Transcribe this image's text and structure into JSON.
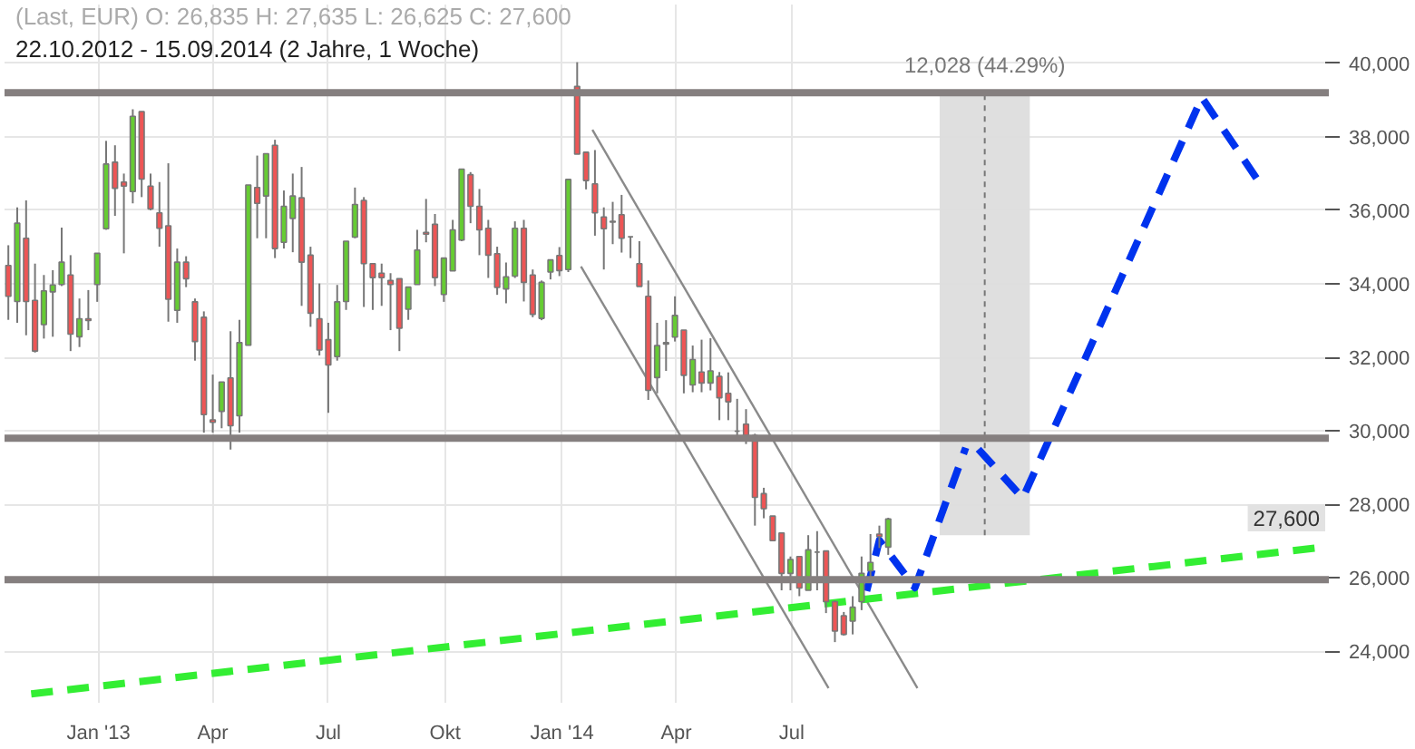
{
  "chart_data": {
    "type": "candlestick",
    "title": "(Last, EUR)  O: 26,835  H: 27,635  L: 26,625  C: 27,600",
    "subtitle": "22.10.2012 - 15.09.2014 (2 Jahre, 1 Woche)",
    "x": [
      "2012-10-22",
      "2012-10-29",
      "2012-11-05",
      "2012-11-12",
      "2012-11-19",
      "2012-11-26",
      "2012-12-03",
      "2012-12-10",
      "2012-12-17",
      "2012-12-24",
      "2012-12-31",
      "2013-01-07",
      "2013-01-14",
      "2013-01-21",
      "2013-01-28",
      "2013-02-04",
      "2013-02-11",
      "2013-02-18",
      "2013-02-25",
      "2013-03-04",
      "2013-03-11",
      "2013-03-18",
      "2013-03-25",
      "2013-04-01",
      "2013-04-08",
      "2013-04-15",
      "2013-04-22",
      "2013-04-29",
      "2013-05-06",
      "2013-05-13",
      "2013-05-20",
      "2013-05-27",
      "2013-06-03",
      "2013-06-10",
      "2013-06-17",
      "2013-06-24",
      "2013-07-01",
      "2013-07-08",
      "2013-07-15",
      "2013-07-22",
      "2013-07-29",
      "2013-08-05",
      "2013-08-12",
      "2013-08-19",
      "2013-08-26",
      "2013-09-02",
      "2013-09-09",
      "2013-09-16",
      "2013-09-23",
      "2013-09-30",
      "2013-10-07",
      "2013-10-14",
      "2013-10-21",
      "2013-10-28",
      "2013-11-04",
      "2013-11-11",
      "2013-11-18",
      "2013-11-25",
      "2013-12-02",
      "2013-12-09",
      "2013-12-16",
      "2013-12-23",
      "2013-12-30",
      "2014-01-06",
      "2014-01-13",
      "2014-01-20",
      "2014-01-27",
      "2014-02-03",
      "2014-02-10",
      "2014-02-17",
      "2014-02-24",
      "2014-03-03",
      "2014-03-10",
      "2014-03-17",
      "2014-03-24",
      "2014-03-31",
      "2014-04-07",
      "2014-04-14",
      "2014-04-21",
      "2014-04-28",
      "2014-05-05",
      "2014-05-12",
      "2014-05-19",
      "2014-05-26",
      "2014-06-02",
      "2014-06-09",
      "2014-06-16",
      "2014-06-23",
      "2014-06-30",
      "2014-07-07",
      "2014-07-14",
      "2014-07-21",
      "2014-07-28",
      "2014-08-04",
      "2014-08-11",
      "2014-08-18",
      "2014-08-25",
      "2014-09-01",
      "2014-09-08",
      "2014-09-15"
    ],
    "ohlc": [
      [
        34500,
        35050,
        33020,
        33660
      ],
      [
        33520,
        36080,
        32940,
        35650
      ],
      [
        35240,
        36270,
        32600,
        33520
      ],
      [
        33550,
        34550,
        32130,
        32170
      ],
      [
        32890,
        34240,
        32510,
        33810
      ],
      [
        33780,
        34370,
        32560,
        33970
      ],
      [
        33980,
        35530,
        33940,
        34590
      ],
      [
        34240,
        34780,
        32170,
        32630
      ],
      [
        32560,
        33600,
        32280,
        33050
      ],
      [
        33050,
        33830,
        32740,
        33000
      ],
      [
        33980,
        34830,
        33510,
        34830
      ],
      [
        35500,
        37890,
        35470,
        37260
      ],
      [
        37310,
        37770,
        35850,
        36600
      ],
      [
        36770,
        37000,
        34830,
        36660
      ],
      [
        36510,
        38750,
        36190,
        38560
      ],
      [
        38690,
        38690,
        36360,
        36850
      ],
      [
        36660,
        37000,
        36000,
        36040
      ],
      [
        35930,
        36770,
        35010,
        35510
      ],
      [
        35580,
        37280,
        32970,
        33580
      ],
      [
        33280,
        34960,
        32940,
        34590
      ],
      [
        34590,
        34750,
        33910,
        34140
      ],
      [
        33510,
        33600,
        31910,
        32430
      ],
      [
        33090,
        33250,
        29950,
        30440
      ],
      [
        30300,
        31530,
        29950,
        30230
      ],
      [
        30530,
        31330,
        30070,
        31330
      ],
      [
        31440,
        32710,
        29490,
        30140
      ],
      [
        30410,
        33020,
        29950,
        32400
      ],
      [
        32330,
        36690,
        32330,
        36690
      ],
      [
        36620,
        37490,
        35240,
        36190
      ],
      [
        36390,
        37540,
        35240,
        37540
      ],
      [
        37770,
        37920,
        34700,
        34960
      ],
      [
        35130,
        36540,
        34960,
        36110
      ],
      [
        35780,
        37000,
        34860,
        36390
      ],
      [
        36340,
        37180,
        33400,
        34590
      ],
      [
        34780,
        35010,
        32830,
        33200
      ],
      [
        33050,
        34010,
        32050,
        32200
      ],
      [
        32480,
        32940,
        30490,
        31790
      ],
      [
        32020,
        33970,
        31910,
        33510
      ],
      [
        33520,
        35160,
        33290,
        35160
      ],
      [
        35270,
        36620,
        35240,
        36160
      ],
      [
        36270,
        36360,
        33370,
        34550
      ],
      [
        34550,
        34550,
        33290,
        34170
      ],
      [
        34290,
        34550,
        33400,
        34170
      ],
      [
        34090,
        34290,
        32740,
        33980
      ],
      [
        34140,
        34140,
        32170,
        32790
      ],
      [
        33310,
        33910,
        33020,
        33910
      ],
      [
        33980,
        35470,
        33980,
        34920
      ],
      [
        35400,
        36310,
        35130,
        35350
      ],
      [
        35620,
        35900,
        33940,
        34170
      ],
      [
        33710,
        34700,
        33510,
        34700
      ],
      [
        34350,
        35740,
        34350,
        35470
      ],
      [
        35190,
        37120,
        35160,
        37120
      ],
      [
        36970,
        37040,
        35650,
        36110
      ],
      [
        36110,
        36580,
        34780,
        35470
      ],
      [
        35510,
        35740,
        34160,
        34780
      ],
      [
        34820,
        35010,
        33700,
        33900
      ],
      [
        33860,
        34580,
        33470,
        34190
      ],
      [
        34210,
        35700,
        34160,
        35510
      ],
      [
        35510,
        35740,
        33520,
        34040
      ],
      [
        34240,
        34390,
        33090,
        33170
      ],
      [
        33060,
        34090,
        33010,
        34040
      ],
      [
        34320,
        34650,
        34120,
        34650
      ],
      [
        34770,
        35000,
        34210,
        34360
      ],
      [
        34390,
        36840,
        34320,
        36840
      ],
      [
        39370,
        40030,
        37530,
        37530
      ],
      [
        37580,
        37580,
        36570,
        36810
      ],
      [
        36720,
        37640,
        35310,
        35930
      ],
      [
        35820,
        36080,
        34390,
        35500
      ],
      [
        35700,
        36230,
        35080,
        35680
      ],
      [
        35880,
        36420,
        34850,
        35240
      ],
      [
        35280,
        35280,
        34700,
        35280
      ],
      [
        34550,
        35160,
        33930,
        33930
      ],
      [
        33660,
        34090,
        30840,
        31100
      ],
      [
        31450,
        32940,
        31020,
        32320
      ],
      [
        32400,
        33010,
        31630,
        32360
      ],
      [
        32550,
        33660,
        32430,
        33140
      ],
      [
        32740,
        32740,
        31020,
        31510
      ],
      [
        31250,
        32320,
        31050,
        31940
      ],
      [
        31600,
        32480,
        31050,
        31300
      ],
      [
        31300,
        32520,
        31100,
        31630
      ],
      [
        31480,
        31600,
        30290,
        30900
      ],
      [
        31020,
        31590,
        30290,
        30790
      ],
      [
        29990,
        30870,
        29870,
        29990
      ],
      [
        30180,
        30590,
        29640,
        29870
      ],
      [
        29870,
        29920,
        27420,
        28190
      ],
      [
        28290,
        28450,
        27620,
        27880
      ],
      [
        27680,
        27680,
        27010,
        27010
      ],
      [
        27220,
        27220,
        25660,
        26120
      ],
      [
        26120,
        26580,
        25660,
        26500
      ],
      [
        26580,
        26580,
        25500,
        25720
      ],
      [
        25660,
        27160,
        25660,
        26760
      ],
      [
        26700,
        27270,
        25660,
        26700
      ],
      [
        26730,
        26730,
        25040,
        25350
      ],
      [
        25350,
        25380,
        24250,
        24550
      ],
      [
        24970,
        25070,
        24430,
        24460
      ],
      [
        24820,
        25500,
        24460,
        25200
      ],
      [
        25350,
        26580,
        25120,
        26120
      ],
      [
        26190,
        27190,
        25890,
        26420
      ],
      [
        27190,
        27420,
        26810,
        27120
      ],
      [
        26835,
        27635,
        26625,
        27600
      ]
    ],
    "series": [
      {
        "type": "bar",
        "x": [
          "2014-11-30"
        ],
        "base": [
          27160
        ],
        "values": [
          12028
        ],
        "color": "#dddddd"
      },
      {
        "type": "line",
        "x": [
          "2014-01-25",
          "2014-10-08"
        ],
        "values": [
          38190,
          23000
        ],
        "color": "#8a8a8a"
      },
      {
        "type": "line",
        "x": [
          "2014-01-16",
          "2014-07-30"
        ],
        "values": [
          34470,
          23000
        ],
        "color": "#8a8a8a"
      },
      {
        "type": "line",
        "x": [
          "2012-11-09",
          "2015-08-28"
        ],
        "values": [
          22840,
          26850
        ],
        "color": "#33ee33",
        "line_style": "dashed"
      },
      {
        "type": "line",
        "x": [
          "2014-08-29",
          "2014-09-08",
          "2014-10-06",
          "2014-11-15"
        ],
        "values": [
          25640,
          27020,
          25730,
          29540
        ],
        "color": "#0033ee",
        "line_style": "dashed"
      },
      {
        "type": "line",
        "x": [
          "2014-11-25",
          "2014-12-30",
          "2015-05-20",
          "2015-07-06"
        ],
        "values": [
          29500,
          28170,
          39070,
          36670
        ],
        "color": "#0033ee",
        "line_style": "dashed"
      }
    ],
    "ref_lines": [
      {
        "axis": "y",
        "value": 39200,
        "color": "#857f7f"
      },
      {
        "axis": "y",
        "value": 29800,
        "color": "#857f7f"
      },
      {
        "axis": "y",
        "value": 25950,
        "color": "#857f7f"
      }
    ],
    "annotations": [
      {
        "text": "12,028 (44.29%)",
        "x": "2014-11-30",
        "y": 39200
      },
      "27,600"
    ],
    "xlim": [
      "2012-10-19",
      "2015-08-28"
    ],
    "xticks": [
      {
        "value": "2013-01-01",
        "label": "Jan '13"
      },
      {
        "value": "2013-04-01",
        "label": "Apr"
      },
      {
        "value": "2013-07-01",
        "label": "Jul"
      },
      {
        "value": "2013-10-01",
        "label": "Okt"
      },
      {
        "value": "2014-01-01",
        "label": "Jan '14"
      },
      {
        "value": "2014-04-01",
        "label": "Apr"
      },
      {
        "value": "2014-07-01",
        "label": "Jul"
      }
    ],
    "ylim": [
      22600,
      41600
    ],
    "yticks": [
      {
        "value": 24000,
        "label": "24,000"
      },
      {
        "value": 26000,
        "label": "26,000"
      },
      {
        "value": 28000,
        "label": "28,000"
      },
      {
        "value": 30000,
        "label": "30,000"
      },
      {
        "value": 32000,
        "label": "32,000"
      },
      {
        "value": 34000,
        "label": "34,000"
      },
      {
        "value": 36000,
        "label": "36,000"
      },
      {
        "value": 38000,
        "label": "38,000"
      },
      {
        "value": 40000,
        "label": "40,000"
      }
    ],
    "grid": true
  }
}
